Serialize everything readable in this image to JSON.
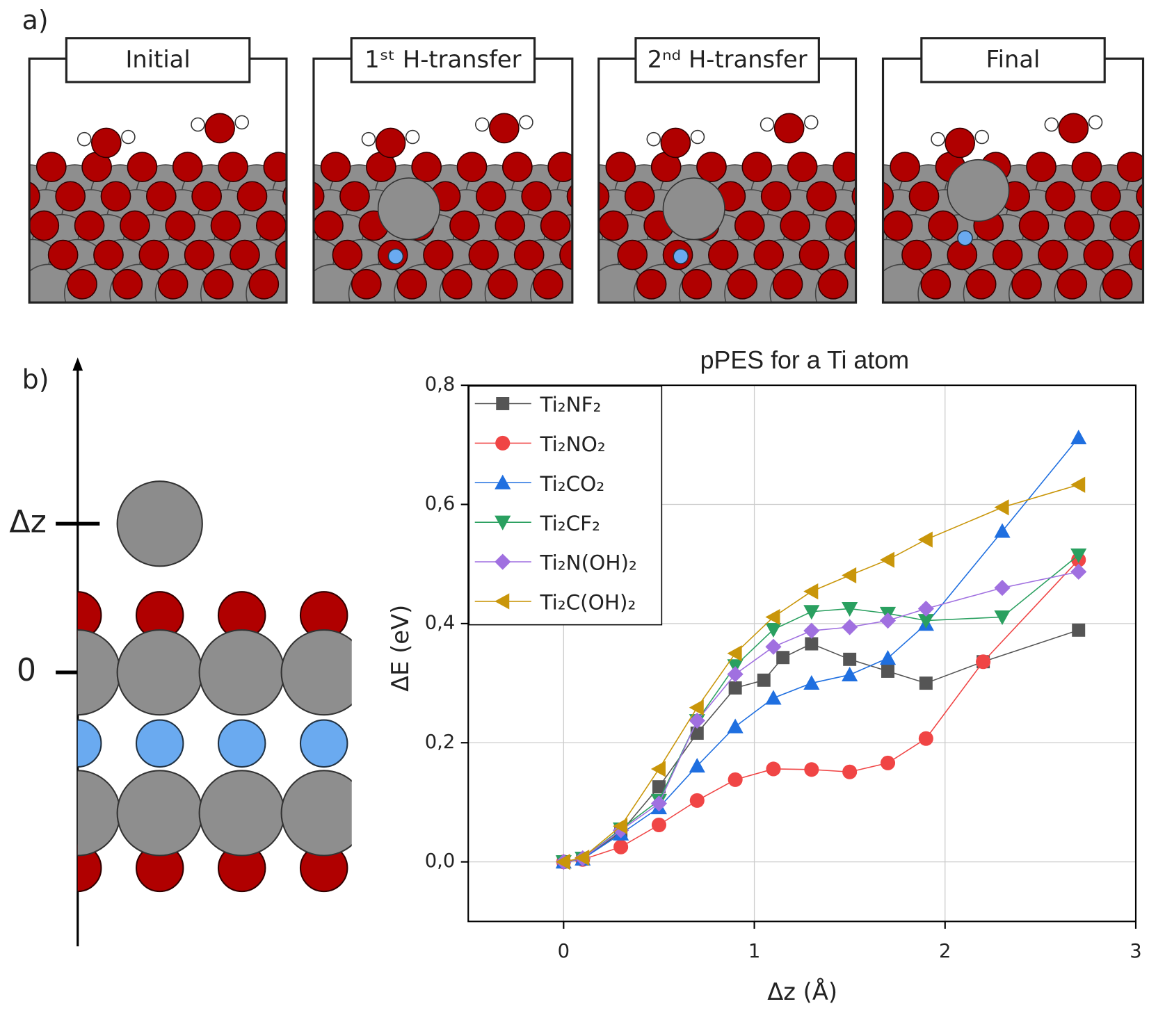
{
  "figure": {
    "panel_a_label": "a)",
    "panel_b_label": "b)",
    "snapshots": [
      "Initial",
      "1ˢᵗ H-transfer",
      "2ⁿᵈ H-transfer",
      "Final"
    ],
    "schematic": {
      "dz_label": "Δz",
      "zero_label": "0"
    }
  },
  "chart_data": {
    "type": "line",
    "title": "pPES for a Ti atom",
    "x_label": "Δz (Å)",
    "y_label": "ΔE (eV)",
    "xlim": [
      -0.5,
      3
    ],
    "ylim": [
      -0.1,
      0.8
    ],
    "xticks": [
      0,
      1,
      2,
      3
    ],
    "yticks": [
      {
        "value": 0,
        "label": "0,0"
      },
      {
        "value": 0.2,
        "label": "0,2"
      },
      {
        "value": 0.4,
        "label": "0,4"
      },
      {
        "value": 0.6,
        "label": "0,6"
      },
      {
        "value": 0.8,
        "label": "0,8"
      }
    ],
    "grid": true,
    "legend_position": "upper left",
    "series": [
      {
        "name": "Ti₂NF₂",
        "color": "#555555",
        "marker": "square",
        "x": [
          0,
          0.1,
          0.3,
          0.5,
          0.7,
          0.9,
          1.05,
          1.15,
          1.3,
          1.5,
          1.7,
          1.9,
          2.2,
          2.7
        ],
        "values": [
          0,
          0.005,
          0.05,
          0.126,
          0.216,
          0.292,
          0.305,
          0.343,
          0.366,
          0.34,
          0.32,
          0.3,
          0.336,
          0.389
        ]
      },
      {
        "name": "Ti₂NO₂",
        "color": "#f04545",
        "marker": "circle",
        "x": [
          0,
          0.1,
          0.3,
          0.5,
          0.7,
          0.9,
          1.1,
          1.3,
          1.5,
          1.7,
          1.9,
          2.2,
          2.7
        ],
        "values": [
          0,
          0.004,
          0.025,
          0.062,
          0.103,
          0.138,
          0.156,
          0.155,
          0.151,
          0.166,
          0.207,
          0.336,
          0.507
        ]
      },
      {
        "name": "Ti₂CO₂",
        "color": "#1f6fe0",
        "marker": "triangle-up",
        "x": [
          0,
          0.1,
          0.3,
          0.5,
          0.7,
          0.9,
          1.1,
          1.3,
          1.5,
          1.7,
          1.9,
          2.3,
          2.7
        ],
        "values": [
          0,
          0.005,
          0.047,
          0.091,
          0.161,
          0.227,
          0.275,
          0.3,
          0.314,
          0.342,
          0.399,
          0.555,
          0.712
        ]
      },
      {
        "name": "Ti₂CF₂",
        "color": "#2aa060",
        "marker": "triangle-down",
        "x": [
          0,
          0.1,
          0.3,
          0.5,
          0.7,
          0.9,
          1.1,
          1.3,
          1.5,
          1.7,
          1.9,
          2.3,
          2.7
        ],
        "values": [
          0,
          0.006,
          0.055,
          0.103,
          0.237,
          0.329,
          0.39,
          0.42,
          0.425,
          0.417,
          0.405,
          0.411,
          0.515
        ]
      },
      {
        "name": "Ti₂N(OH)₂",
        "color": "#a070e0",
        "marker": "diamond",
        "x": [
          0,
          0.1,
          0.3,
          0.5,
          0.7,
          0.9,
          1.1,
          1.3,
          1.5,
          1.7,
          1.9,
          2.3,
          2.7
        ],
        "values": [
          0,
          0.006,
          0.053,
          0.098,
          0.237,
          0.315,
          0.361,
          0.388,
          0.394,
          0.405,
          0.425,
          0.46,
          0.487
        ]
      },
      {
        "name": "Ti₂C(OH)₂",
        "color": "#c9960a",
        "marker": "triangle-left",
        "x": [
          0,
          0.1,
          0.3,
          0.5,
          0.7,
          0.9,
          1.1,
          1.3,
          1.5,
          1.7,
          1.9,
          2.3,
          2.7
        ],
        "values": [
          0,
          0.007,
          0.06,
          0.156,
          0.259,
          0.35,
          0.411,
          0.454,
          0.481,
          0.507,
          0.541,
          0.595,
          0.633
        ]
      }
    ]
  }
}
